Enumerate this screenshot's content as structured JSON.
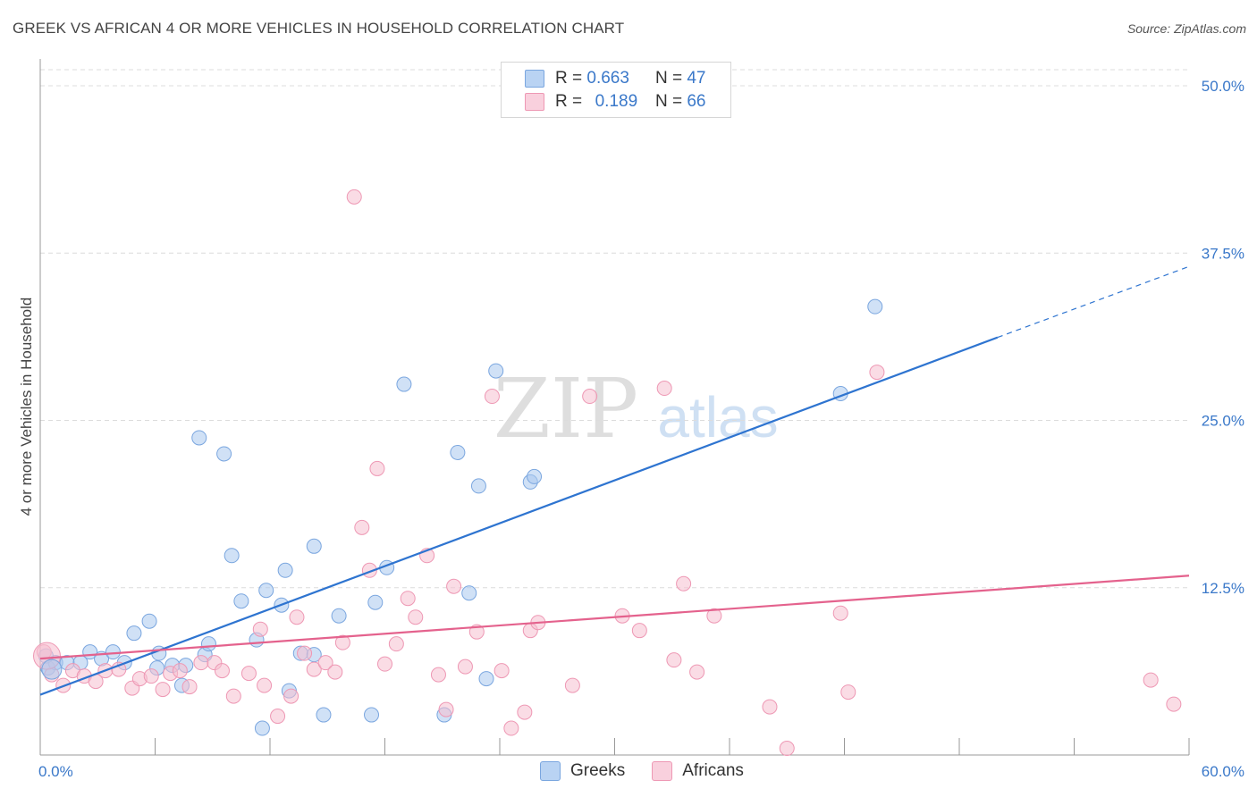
{
  "title": "GREEK VS AFRICAN 4 OR MORE VEHICLES IN HOUSEHOLD CORRELATION CHART",
  "source": "Source: ZipAtlas.com",
  "watermark": {
    "zip": "ZIP",
    "atlas": "atlas"
  },
  "legend": {
    "r_label": "R =",
    "n_label": "N =",
    "series": [
      {
        "name": "Greeks",
        "r": "0.663",
        "n": "47",
        "color": "#a9c8ef",
        "edge": "#7aa6df",
        "line": "#2e74d0"
      },
      {
        "name": "Africans",
        "r": "0.189",
        "n": "66",
        "color": "#f6bfd0",
        "edge": "#ee98b4",
        "line": "#e4628d"
      }
    ]
  },
  "chart_data": {
    "type": "scatter",
    "title": "GREEK VS AFRICAN 4 OR MORE VEHICLES IN HOUSEHOLD CORRELATION CHART",
    "xlabel": "",
    "ylabel": "4 or more Vehicles in Household",
    "xlim": [
      0,
      60
    ],
    "ylim": [
      0,
      50
    ],
    "x_tick_labels": [
      "0.0%",
      "60.0%"
    ],
    "y_tick_labels": [
      "12.5%",
      "25.0%",
      "37.5%",
      "50.0%"
    ],
    "y_ticks": [
      12.5,
      25.0,
      37.5,
      50.0
    ],
    "series": [
      {
        "name": "Greeks",
        "r": 0.663,
        "n": 47,
        "trend": {
          "x": [
            0,
            50
          ],
          "y": [
            4.5,
            31.2
          ],
          "dashed_to": [
            60,
            36.5
          ]
        },
        "points": [
          [
            0.4,
            6.5
          ],
          [
            0.8,
            6.9
          ],
          [
            1.4,
            6.9
          ],
          [
            2.1,
            6.9
          ],
          [
            2.6,
            7.7
          ],
          [
            3.2,
            7.2
          ],
          [
            3.8,
            7.7
          ],
          [
            4.4,
            6.9
          ],
          [
            4.9,
            9.1
          ],
          [
            5.7,
            10.0
          ],
          [
            6.1,
            6.5
          ],
          [
            6.2,
            7.6
          ],
          [
            6.9,
            6.7
          ],
          [
            7.4,
            5.2
          ],
          [
            7.6,
            6.7
          ],
          [
            8.3,
            23.7
          ],
          [
            8.6,
            7.5
          ],
          [
            8.8,
            8.3
          ],
          [
            9.6,
            22.5
          ],
          [
            10.0,
            14.9
          ],
          [
            10.5,
            11.5
          ],
          [
            11.3,
            8.6
          ],
          [
            11.6,
            2.0
          ],
          [
            11.8,
            12.3
          ],
          [
            12.6,
            11.2
          ],
          [
            12.8,
            13.8
          ],
          [
            13.0,
            4.8
          ],
          [
            13.6,
            7.6
          ],
          [
            14.3,
            15.6
          ],
          [
            14.8,
            3.0
          ],
          [
            15.6,
            10.4
          ],
          [
            17.3,
            3.0
          ],
          [
            17.5,
            11.4
          ],
          [
            18.1,
            14.0
          ],
          [
            19.0,
            27.7
          ],
          [
            21.1,
            3.0
          ],
          [
            21.8,
            22.6
          ],
          [
            22.4,
            12.1
          ],
          [
            22.9,
            20.1
          ],
          [
            23.3,
            5.7
          ],
          [
            23.8,
            28.7
          ],
          [
            25.6,
            20.4
          ],
          [
            25.8,
            20.8
          ],
          [
            41.8,
            27.0
          ],
          [
            43.6,
            33.5
          ],
          [
            0.3,
            7.4
          ],
          [
            14.3,
            7.5
          ]
        ]
      },
      {
        "name": "Africans",
        "r": 0.189,
        "n": 66,
        "trend": {
          "x": [
            0,
            60
          ],
          "y": [
            7.2,
            13.4
          ]
        },
        "points": [
          [
            0.2,
            7.7
          ],
          [
            0.6,
            6.0
          ],
          [
            1.2,
            5.2
          ],
          [
            1.7,
            6.3
          ],
          [
            2.3,
            5.9
          ],
          [
            2.9,
            5.5
          ],
          [
            3.4,
            6.3
          ],
          [
            4.1,
            6.4
          ],
          [
            4.8,
            5.0
          ],
          [
            5.2,
            5.7
          ],
          [
            5.8,
            5.9
          ],
          [
            6.4,
            4.9
          ],
          [
            6.8,
            6.1
          ],
          [
            7.3,
            6.3
          ],
          [
            7.8,
            5.1
          ],
          [
            8.4,
            6.9
          ],
          [
            9.1,
            6.9
          ],
          [
            9.5,
            6.3
          ],
          [
            10.1,
            4.4
          ],
          [
            10.9,
            6.1
          ],
          [
            11.5,
            9.4
          ],
          [
            11.7,
            5.2
          ],
          [
            12.4,
            2.9
          ],
          [
            13.1,
            4.4
          ],
          [
            13.4,
            10.3
          ],
          [
            13.8,
            7.6
          ],
          [
            14.3,
            6.4
          ],
          [
            14.9,
            6.9
          ],
          [
            15.4,
            6.2
          ],
          [
            15.8,
            8.4
          ],
          [
            16.4,
            41.7
          ],
          [
            16.8,
            17.0
          ],
          [
            17.2,
            13.8
          ],
          [
            17.6,
            21.4
          ],
          [
            18.0,
            6.8
          ],
          [
            18.6,
            8.3
          ],
          [
            19.2,
            11.7
          ],
          [
            19.6,
            10.3
          ],
          [
            20.2,
            14.9
          ],
          [
            20.8,
            6.0
          ],
          [
            21.2,
            3.4
          ],
          [
            21.6,
            12.6
          ],
          [
            22.2,
            6.6
          ],
          [
            22.8,
            9.2
          ],
          [
            23.6,
            26.8
          ],
          [
            24.1,
            6.3
          ],
          [
            24.6,
            2.0
          ],
          [
            25.3,
            3.2
          ],
          [
            25.6,
            9.3
          ],
          [
            26.0,
            9.9
          ],
          [
            28.7,
            26.8
          ],
          [
            30.4,
            10.4
          ],
          [
            31.3,
            9.3
          ],
          [
            32.6,
            27.4
          ],
          [
            33.6,
            12.8
          ],
          [
            34.3,
            6.2
          ],
          [
            35.2,
            10.4
          ],
          [
            38.1,
            3.6
          ],
          [
            39.0,
            0.5
          ],
          [
            41.8,
            10.6
          ],
          [
            42.2,
            4.7
          ],
          [
            43.7,
            28.6
          ],
          [
            58.0,
            5.6
          ],
          [
            59.2,
            3.8
          ],
          [
            33.1,
            7.1
          ],
          [
            27.8,
            5.2
          ]
        ]
      }
    ]
  }
}
